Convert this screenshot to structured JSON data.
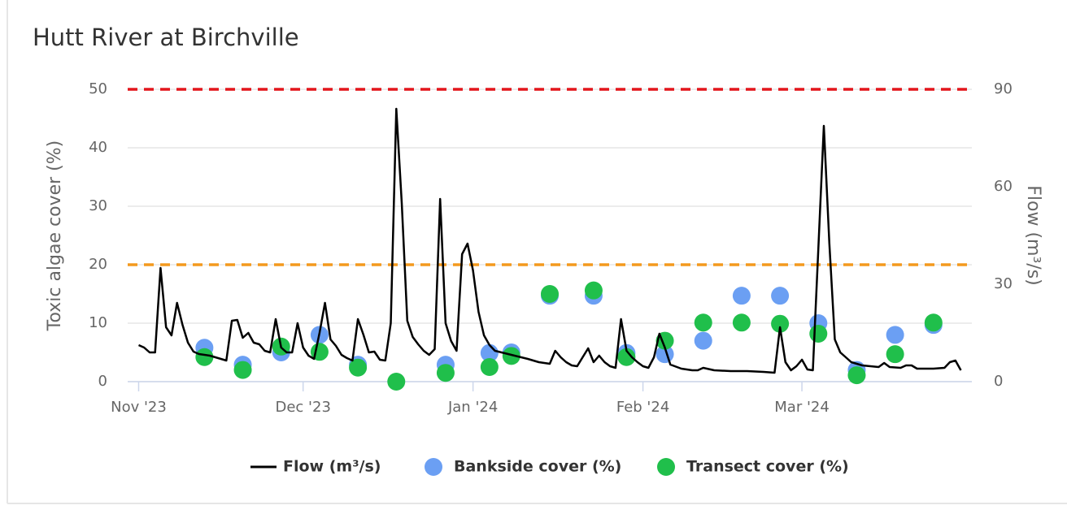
{
  "chart_data": {
    "type": "combo",
    "title": "Hutt River at Birchville",
    "ylabel": "Toxic algae cover (%)",
    "y2label": "Flow (m³/s)",
    "ylim": [
      0,
      50
    ],
    "yticks": [
      0,
      10,
      20,
      30,
      40,
      50
    ],
    "y2lim": [
      0,
      90
    ],
    "y2ticks": [
      0,
      30,
      60,
      90
    ],
    "xlim": [
      "2023-10-30",
      "2024-04-01"
    ],
    "xticks": [
      {
        "value": "2023-11-01",
        "label": "Nov '23"
      },
      {
        "value": "2023-12-01",
        "label": "Dec '23"
      },
      {
        "value": "2024-01-01",
        "label": "Jan '24"
      },
      {
        "value": "2024-02-01",
        "label": "Feb '24"
      },
      {
        "value": "2024-03-01",
        "label": "Mar '24"
      }
    ],
    "grid": true,
    "thresholds": [
      {
        "value": 50,
        "color": "#e3161c"
      },
      {
        "value": 20,
        "color": "#f39a1e"
      }
    ],
    "series": [
      {
        "name": "Flow (m³/s)",
        "type": "line",
        "axis": "y2",
        "color": "#000000",
        "x": [
          "2023-11-01",
          "2023-11-02",
          "2023-11-03",
          "2023-11-04",
          "2023-11-05",
          "2023-11-06",
          "2023-11-07",
          "2023-11-08",
          "2023-11-09",
          "2023-11-10",
          "2023-11-11",
          "2023-11-12",
          "2023-11-14",
          "2023-11-16",
          "2023-11-17",
          "2023-11-18",
          "2023-11-19",
          "2023-11-20",
          "2023-11-21",
          "2023-11-22",
          "2023-11-23",
          "2023-11-24",
          "2023-11-25",
          "2023-11-26",
          "2023-11-27",
          "2023-11-28",
          "2023-11-29",
          "2023-11-30",
          "2023-12-01",
          "2023-12-02",
          "2023-12-03",
          "2023-12-04",
          "2023-12-05",
          "2023-12-06",
          "2023-12-07",
          "2023-12-08",
          "2023-12-09",
          "2023-12-10",
          "2023-12-11",
          "2023-12-12",
          "2023-12-13",
          "2023-12-14",
          "2023-12-15",
          "2023-12-16",
          "2023-12-17",
          "2023-12-18",
          "2023-12-19",
          "2023-12-20",
          "2023-12-21",
          "2023-12-22",
          "2023-12-23",
          "2023-12-24",
          "2023-12-25",
          "2023-12-26",
          "2023-12-27",
          "2023-12-28",
          "2023-12-29",
          "2023-12-30",
          "2023-12-31",
          "2024-01-01",
          "2024-01-02",
          "2024-01-03",
          "2024-01-04",
          "2024-01-05",
          "2024-01-08",
          "2024-01-11",
          "2024-01-13",
          "2024-01-15",
          "2024-01-16",
          "2024-01-17",
          "2024-01-18",
          "2024-01-19",
          "2024-01-20",
          "2024-01-21",
          "2024-01-22",
          "2024-01-23",
          "2024-01-24",
          "2024-01-25",
          "2024-01-26",
          "2024-01-27",
          "2024-01-28",
          "2024-01-29",
          "2024-01-30",
          "2024-01-31",
          "2024-02-01",
          "2024-02-02",
          "2024-02-03",
          "2024-02-04",
          "2024-02-05",
          "2024-02-06",
          "2024-02-08",
          "2024-02-10",
          "2024-02-11",
          "2024-02-12",
          "2024-02-14",
          "2024-02-17",
          "2024-02-20",
          "2024-02-23",
          "2024-02-25",
          "2024-02-26",
          "2024-02-27",
          "2024-02-28",
          "2024-02-29",
          "2024-03-01",
          "2024-03-02",
          "2024-03-03",
          "2024-03-04",
          "2024-03-05",
          "2024-03-06",
          "2024-03-07",
          "2024-03-08",
          "2024-03-09",
          "2024-03-10",
          "2024-03-12",
          "2024-03-15",
          "2024-03-16",
          "2024-03-17",
          "2024-03-19",
          "2024-03-20",
          "2024-03-21",
          "2024-03-22",
          "2024-03-25",
          "2024-03-27",
          "2024-03-28",
          "2024-03-29",
          "2024-03-30"
        ],
        "values": [
          11.25,
          10.5,
          9,
          9,
          35,
          16.75,
          14.25,
          24.25,
          17.5,
          12,
          9.25,
          8.5,
          8,
          7,
          6.5,
          18.75,
          19,
          13.5,
          15,
          12,
          11.5,
          9.5,
          9,
          19.25,
          10.5,
          9,
          9,
          18,
          10.5,
          8,
          7,
          15,
          24.25,
          13,
          11,
          8.25,
          7.25,
          6.5,
          19.25,
          14.5,
          9,
          9.25,
          6.75,
          6.5,
          18,
          84,
          55,
          18.75,
          13.75,
          11.5,
          9.5,
          8.25,
          10,
          56.25,
          18,
          12.5,
          9.5,
          39.25,
          42.5,
          34.25,
          21.5,
          14.25,
          11.25,
          9.5,
          8.25,
          7,
          6,
          5.5,
          9.5,
          7.5,
          6,
          5,
          4.75,
          7.5,
          10.25,
          6,
          8,
          6,
          4.75,
          4.25,
          19.25,
          9.5,
          7.5,
          6,
          4.75,
          4.25,
          7.5,
          14.75,
          10.5,
          5.25,
          4,
          3.5,
          3.5,
          4.25,
          3.5,
          3.25,
          3.25,
          3,
          2.75,
          16.75,
          6,
          3.5,
          4.75,
          6.75,
          3.75,
          3.5,
          41.25,
          78.75,
          42.5,
          13,
          9,
          7.5,
          6,
          5,
          4.5,
          5.75,
          4.5,
          4.25,
          5,
          5,
          4,
          4,
          4.25,
          6,
          6.5,
          3.5
        ]
      },
      {
        "name": "Bankside cover (%)",
        "type": "scatter",
        "color": "#6b9ff3",
        "x": [
          "2023-11-13",
          "2023-11-20",
          "2023-11-27",
          "2023-12-04",
          "2023-12-11",
          "2023-12-27",
          "2024-01-04",
          "2024-01-08",
          "2024-01-15",
          "2024-01-23",
          "2024-01-29",
          "2024-02-05",
          "2024-02-12",
          "2024-02-19",
          "2024-02-26",
          "2024-03-04",
          "2024-03-11",
          "2024-03-18",
          "2024-03-25"
        ],
        "values": [
          5.8,
          2.9,
          5,
          8,
          2.9,
          2.9,
          4.9,
          5,
          14.7,
          14.7,
          4.9,
          4.7,
          7,
          14.7,
          14.7,
          10,
          2,
          8,
          9.7
        ]
      },
      {
        "name": "Transect cover (%)",
        "type": "scatter",
        "color": "#20bf4b",
        "x": [
          "2023-11-13",
          "2023-11-20",
          "2023-11-27",
          "2023-12-04",
          "2023-12-11",
          "2023-12-18",
          "2023-12-27",
          "2024-01-04",
          "2024-01-08",
          "2024-01-15",
          "2024-01-23",
          "2024-01-29",
          "2024-02-05",
          "2024-02-12",
          "2024-02-19",
          "2024-02-26",
          "2024-03-04",
          "2024-03-11",
          "2024-03-18",
          "2024-03-25"
        ],
        "values": [
          4.2,
          2,
          6,
          5.1,
          2.4,
          0,
          1.5,
          2.5,
          4.4,
          15,
          15.6,
          4.2,
          7,
          10.1,
          10.1,
          9.9,
          8.2,
          1.1,
          4.7,
          10.1
        ]
      }
    ]
  }
}
